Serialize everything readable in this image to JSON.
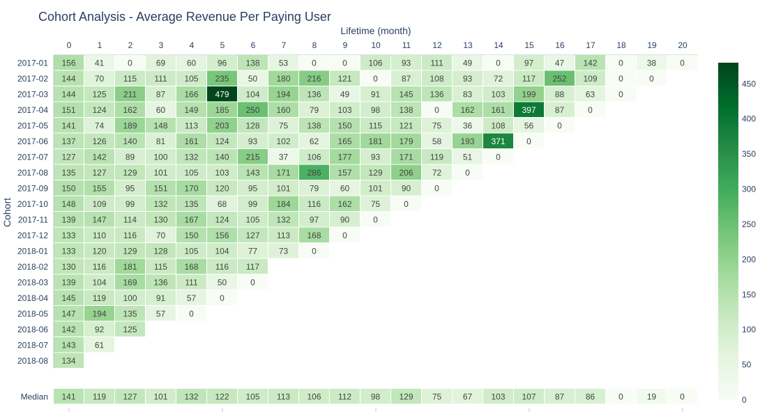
{
  "chart_data": {
    "type": "heatmap",
    "title": "Cohort Analysis - Average Revenue Per Paying User",
    "xlabel": "Lifetime (month)",
    "ylabel": "Cohort",
    "x_ticks": [
      "0",
      "1",
      "2",
      "3",
      "4",
      "5",
      "6",
      "7",
      "8",
      "9",
      "10",
      "11",
      "12",
      "13",
      "14",
      "15",
      "16",
      "17",
      "18",
      "19",
      "20"
    ],
    "cohorts": [
      "2017-01",
      "2017-02",
      "2017-03",
      "2017-04",
      "2017-05",
      "2017-06",
      "2017-07",
      "2017-08",
      "2017-09",
      "2017-10",
      "2017-11",
      "2017-12",
      "2018-01",
      "2018-02",
      "2018-03",
      "2018-04",
      "2018-05",
      "2018-06",
      "2018-07",
      "2018-08"
    ],
    "values": [
      [
        156,
        41,
        0,
        69,
        60,
        96,
        138,
        53,
        0,
        0,
        106,
        93,
        111,
        49,
        0,
        97,
        47,
        142,
        0,
        38,
        0
      ],
      [
        144,
        70,
        115,
        111,
        105,
        235,
        50,
        180,
        216,
        121,
        0,
        87,
        108,
        93,
        72,
        117,
        252,
        109,
        0,
        0
      ],
      [
        144,
        125,
        211,
        87,
        166,
        479,
        104,
        194,
        136,
        49,
        91,
        145,
        136,
        83,
        103,
        199,
        88,
        63,
        0
      ],
      [
        151,
        124,
        162,
        60,
        149,
        185,
        250,
        160,
        79,
        103,
        98,
        138,
        0,
        162,
        161,
        397,
        87,
        0
      ],
      [
        141,
        74,
        189,
        148,
        113,
        203,
        128,
        75,
        138,
        150,
        115,
        121,
        75,
        36,
        108,
        56,
        0
      ],
      [
        137,
        126,
        140,
        81,
        161,
        124,
        93,
        102,
        62,
        165,
        181,
        179,
        58,
        193,
        371,
        0
      ],
      [
        127,
        142,
        89,
        100,
        132,
        140,
        215,
        37,
        106,
        177,
        93,
        171,
        119,
        51,
        0
      ],
      [
        135,
        127,
        129,
        101,
        105,
        103,
        143,
        171,
        286,
        157,
        129,
        206,
        72,
        0
      ],
      [
        150,
        155,
        95,
        151,
        170,
        120,
        95,
        101,
        79,
        60,
        101,
        90,
        0
      ],
      [
        148,
        109,
        99,
        132,
        135,
        68,
        99,
        184,
        116,
        162,
        75,
        0
      ],
      [
        139,
        147,
        114,
        130,
        167,
        124,
        105,
        132,
        97,
        90,
        0
      ],
      [
        133,
        110,
        116,
        70,
        150,
        156,
        127,
        113,
        168,
        0
      ],
      [
        133,
        120,
        129,
        128,
        105,
        104,
        77,
        73,
        0
      ],
      [
        130,
        116,
        181,
        115,
        168,
        116,
        117
      ],
      [
        139,
        104,
        169,
        136,
        111,
        50,
        0
      ],
      [
        145,
        119,
        100,
        91,
        57,
        0
      ],
      [
        147,
        194,
        135,
        57,
        0
      ],
      [
        142,
        92,
        125
      ],
      [
        143,
        61
      ],
      [
        134
      ]
    ],
    "median_label": "Median",
    "median": [
      141,
      119,
      127,
      101,
      132,
      122,
      105,
      113,
      106,
      112,
      98,
      129,
      75,
      67,
      103,
      107,
      87,
      86,
      0,
      19,
      0
    ],
    "colorscale": {
      "name": "Greens",
      "min": 0,
      "max": 480
    },
    "colorbar_ticks": [
      0,
      50,
      100,
      150,
      200,
      250,
      300,
      350,
      400,
      450
    ]
  }
}
